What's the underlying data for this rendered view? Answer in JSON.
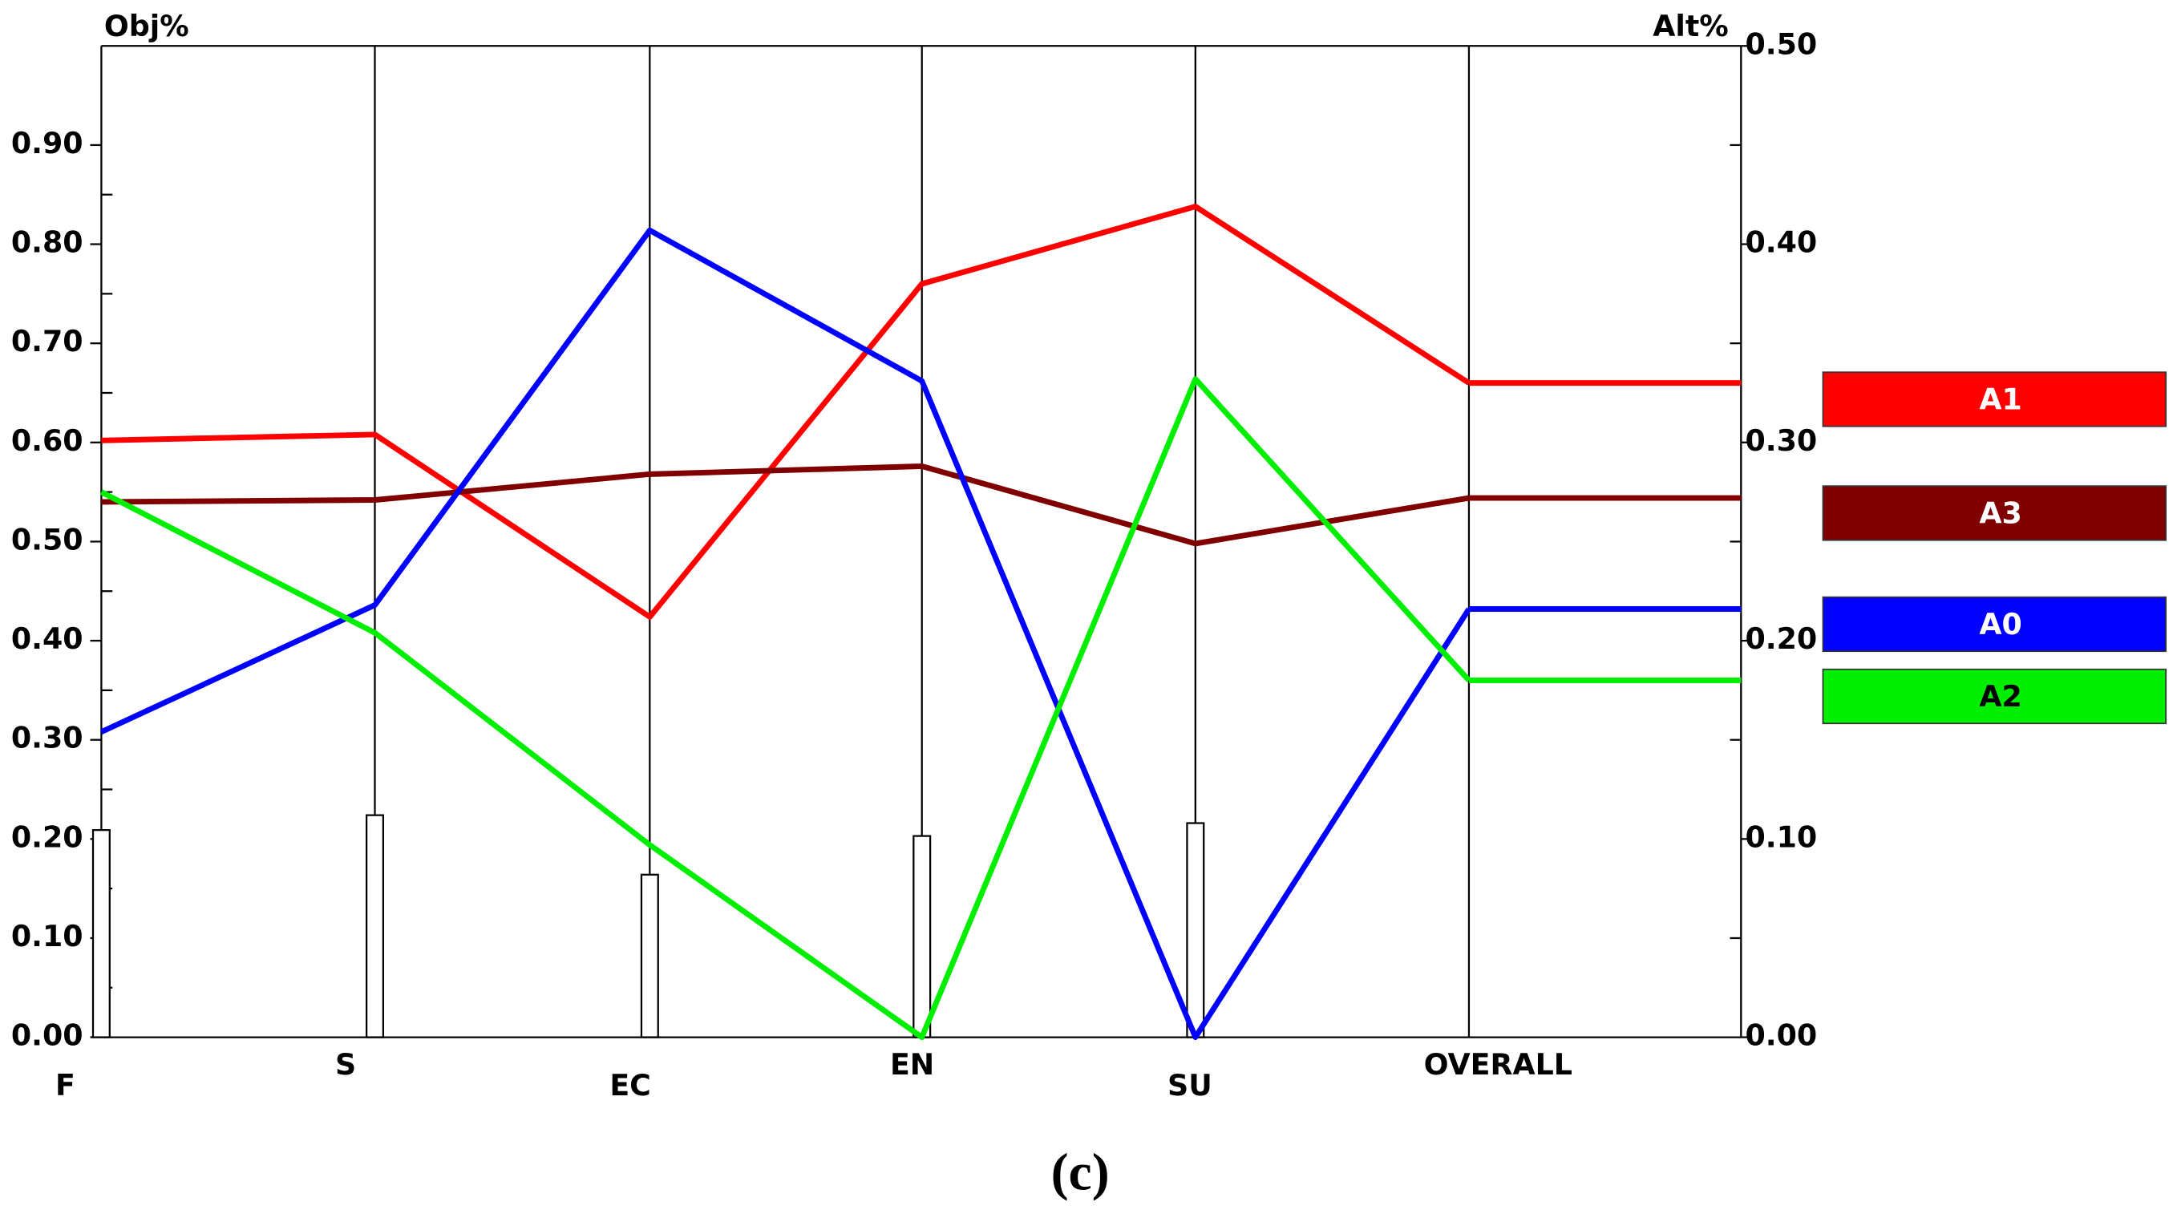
{
  "chart_data": {
    "type": "line",
    "y_label": "Obj%",
    "y2_label": "Alt%",
    "caption": "(c)",
    "categories": [
      "F",
      "S",
      "EC",
      "EN",
      "SU",
      "OVERALL"
    ],
    "objective_weights": [
      0.209,
      0.224,
      0.164,
      0.203,
      0.216,
      null
    ],
    "ylim": [
      0,
      1
    ],
    "yticks": [
      {
        "value": 0,
        "label": "0.00"
      },
      {
        "value": 0.1,
        "label": "0.10"
      },
      {
        "value": 0.2,
        "label": "0.20"
      },
      {
        "value": 0.3,
        "label": "0.30"
      },
      {
        "value": 0.4,
        "label": "0.40"
      },
      {
        "value": 0.5,
        "label": "0.50"
      },
      {
        "value": 0.6,
        "label": "0.60"
      },
      {
        "value": 0.7,
        "label": "0.70"
      },
      {
        "value": 0.8,
        "label": "0.80"
      },
      {
        "value": 0.9,
        "label": "0.90"
      }
    ],
    "y2lim": [
      0,
      0.5
    ],
    "y2ticks": [
      {
        "value": 0,
        "label": "0.00"
      },
      {
        "value": 0.1,
        "label": "0.10"
      },
      {
        "value": 0.2,
        "label": "0.20"
      },
      {
        "value": 0.3,
        "label": "0.30"
      },
      {
        "value": 0.4,
        "label": "0.40"
      },
      {
        "value": 0.5,
        "label": "0.50"
      }
    ],
    "legend": "right",
    "series": [
      {
        "name": "A1",
        "color": "#ff0000",
        "axis": "y2",
        "values": [
          0.301,
          0.304,
          0.212,
          0.38,
          0.419,
          0.33
        ]
      },
      {
        "name": "A3",
        "color": "#800000",
        "axis": "y2",
        "values": [
          0.27,
          0.271,
          0.284,
          0.288,
          0.249,
          0.272
        ]
      },
      {
        "name": "A0",
        "color": "#0000ff",
        "axis": "y2",
        "values": [
          0.154,
          0.218,
          0.407,
          0.331,
          0,
          0.216
        ]
      },
      {
        "name": "A2",
        "color": "#00ee00",
        "axis": "y2",
        "values": [
          0.275,
          0.204,
          0.097,
          0,
          0.332,
          0.18
        ]
      }
    ]
  }
}
